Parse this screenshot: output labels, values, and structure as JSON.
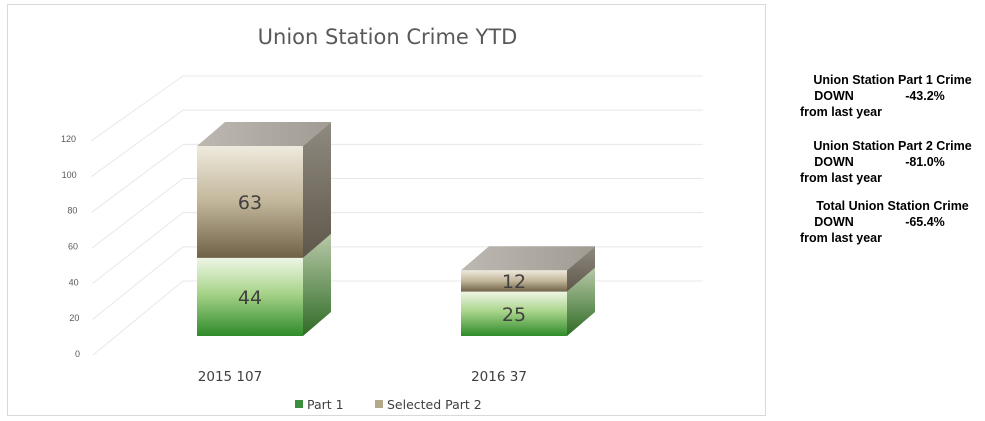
{
  "chart_data": {
    "type": "bar",
    "stacked": true,
    "style": "3d",
    "title": "Union Station Crime YTD",
    "categories": [
      "2015 107",
      "2016 37"
    ],
    "series": [
      {
        "name": "Part 1",
        "values": [
          44,
          25
        ],
        "color": "#3c8f3a"
      },
      {
        "name": "Selected Part 2",
        "values": [
          63,
          12
        ],
        "color": "#a49a83"
      }
    ],
    "ylim": [
      0,
      120
    ],
    "yticks": [
      0,
      20,
      40,
      60,
      80,
      100,
      120
    ],
    "legend": "bottom",
    "grid": true
  },
  "summary": [
    {
      "title": "Union Station Part 1 Crime",
      "direction": "DOWN",
      "percent": "-43.2%",
      "footer": "from last year"
    },
    {
      "title": "Union Station Part 2 Crime",
      "direction": "DOWN",
      "percent": "-81.0%",
      "footer": "from last year"
    },
    {
      "title": "Total Union Station Crime",
      "direction": "DOWN",
      "percent": "-65.4%",
      "footer": "from last year"
    }
  ]
}
